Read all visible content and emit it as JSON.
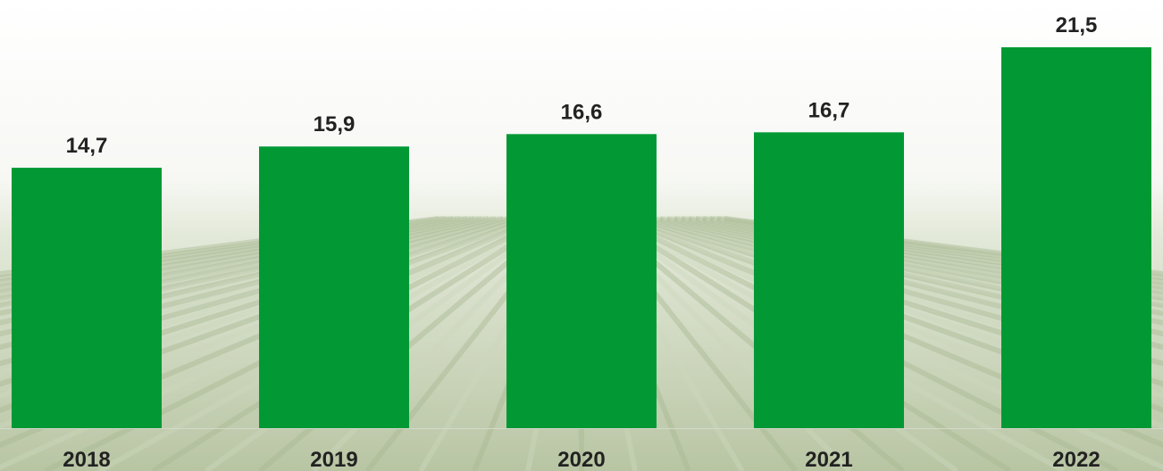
{
  "colors": {
    "bar": "#029935",
    "label": "#222222",
    "sky": "#ffffff",
    "field_near": "#b9c6a6",
    "field_far": "#dfe6d4"
  },
  "chart_data": {
    "type": "bar",
    "categories": [
      "2018",
      "2019",
      "2020",
      "2021",
      "2022"
    ],
    "values": [
      14.7,
      15.9,
      16.6,
      16.7,
      21.5
    ],
    "value_labels": [
      "14,7",
      "15,9",
      "16,6",
      "16,7",
      "21,5"
    ],
    "title": "",
    "xlabel": "",
    "ylabel": "",
    "ylim": [
      0,
      21.5
    ],
    "grid": false,
    "legend": "none"
  }
}
